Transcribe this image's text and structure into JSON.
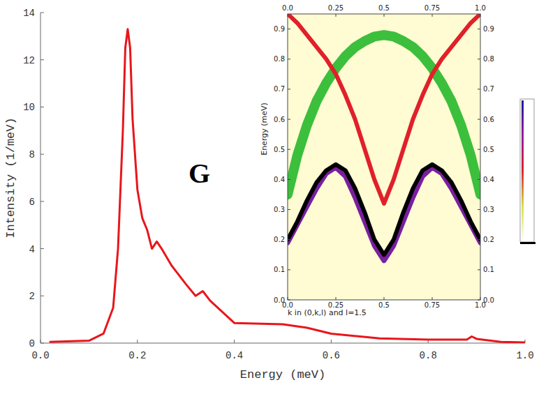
{
  "chart_data": [
    {
      "type": "line",
      "x_label": "Energy (meV)",
      "y_label": "Intensity (1/meV)",
      "annotations": [
        "G"
      ],
      "x": [
        0.02,
        0.1,
        0.13,
        0.15,
        0.16,
        0.17,
        0.175,
        0.18,
        0.185,
        0.19,
        0.2,
        0.21,
        0.22,
        0.23,
        0.24,
        0.25,
        0.27,
        0.3,
        0.32,
        0.335,
        0.35,
        0.4,
        0.5,
        0.55,
        0.6,
        0.7,
        0.8,
        0.88,
        0.89,
        0.9,
        0.95,
        1.0
      ],
      "series": [
        {
          "color": "#e8161b",
          "values": [
            0.05,
            0.1,
            0.4,
            1.5,
            4.0,
            9.0,
            12.5,
            13.3,
            12.5,
            9.5,
            6.5,
            5.3,
            4.8,
            4.0,
            4.3,
            4.0,
            3.3,
            2.5,
            2.0,
            2.2,
            1.8,
            0.85,
            0.8,
            0.65,
            0.4,
            0.2,
            0.15,
            0.15,
            0.28,
            0.18,
            0.05,
            0.03
          ]
        }
      ],
      "xlim": [
        0,
        1
      ],
      "xticks": [
        {
          "value": 0,
          "label": "0.0"
        },
        {
          "value": 0.2,
          "label": "0.2"
        },
        {
          "value": 0.4,
          "label": "0.4"
        },
        {
          "value": 0.6,
          "label": "0.6"
        },
        {
          "value": 0.8,
          "label": "0.8"
        },
        {
          "value": 1,
          "label": "1.0"
        }
      ],
      "ylim": [
        0,
        14
      ],
      "yticks": [
        0,
        2,
        4,
        6,
        8,
        10,
        12,
        14
      ]
    },
    {
      "type": "line",
      "x_label": "k in (0,k,l) and l=1.5",
      "y_label": "Energy (meV)",
      "x": [
        0,
        0.05,
        0.1,
        0.15,
        0.2,
        0.25,
        0.3,
        0.35,
        0.4,
        0.45,
        0.5,
        0.55,
        0.6,
        0.65,
        0.7,
        0.75,
        0.8,
        0.85,
        0.9,
        0.95,
        1.0
      ],
      "series": [
        {
          "color": "#3cbf3c",
          "values": [
            0.35,
            0.48,
            0.58,
            0.66,
            0.72,
            0.77,
            0.81,
            0.84,
            0.86,
            0.875,
            0.88,
            0.875,
            0.86,
            0.84,
            0.81,
            0.77,
            0.72,
            0.66,
            0.58,
            0.48,
            0.35
          ]
        },
        {
          "color": "#e0202a",
          "values": [
            0.95,
            0.92,
            0.88,
            0.84,
            0.8,
            0.75,
            0.68,
            0.6,
            0.5,
            0.4,
            0.32,
            0.4,
            0.5,
            0.6,
            0.68,
            0.75,
            0.8,
            0.84,
            0.88,
            0.92,
            0.95
          ]
        },
        {
          "color": "#7a1fa0",
          "values": [
            0.19,
            0.25,
            0.31,
            0.37,
            0.42,
            0.44,
            0.41,
            0.34,
            0.26,
            0.18,
            0.13,
            0.18,
            0.26,
            0.34,
            0.41,
            0.44,
            0.42,
            0.37,
            0.31,
            0.25,
            0.19
          ]
        },
        {
          "color": "#000000",
          "values": [
            0.2,
            0.26,
            0.33,
            0.39,
            0.43,
            0.45,
            0.43,
            0.37,
            0.29,
            0.2,
            0.15,
            0.2,
            0.29,
            0.37,
            0.43,
            0.45,
            0.43,
            0.39,
            0.33,
            0.26,
            0.2
          ]
        }
      ],
      "xlim": [
        0,
        1
      ],
      "xticks": [
        {
          "value": 0,
          "label": "0.0"
        },
        0.25,
        0.5,
        0.75,
        {
          "value": 1,
          "label": "1.0"
        }
      ],
      "ylim": [
        0,
        0.95
      ],
      "yticks": [
        {
          "value": 0,
          "label": "0.0"
        },
        0.1,
        0.2,
        0.3,
        0.4,
        0.5,
        0.6,
        0.7,
        0.8,
        0.9
      ]
    }
  ]
}
